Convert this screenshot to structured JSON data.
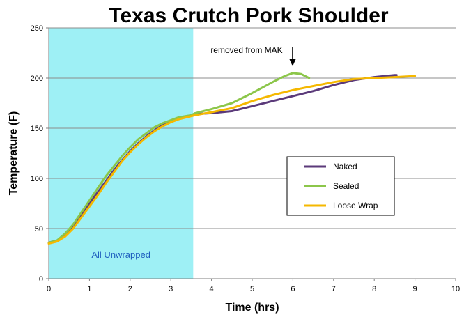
{
  "chart_data": {
    "type": "line",
    "title": "Texas Crutch Pork Shoulder",
    "xlabel": "Time (hrs)",
    "ylabel": "Temperature (F)",
    "xlim": [
      0,
      10
    ],
    "ylim": [
      0,
      250
    ],
    "xticks": [
      "0",
      "1",
      "2",
      "3",
      "4",
      "5",
      "6",
      "7",
      "8",
      "9",
      "10"
    ],
    "yticks": [
      "0",
      "50",
      "100",
      "150",
      "200",
      "250"
    ],
    "grid": "horizontal",
    "legend_position": "right-center",
    "shaded_region": {
      "label": "All Unwrapped",
      "x_start": 0,
      "x_end": 3.55,
      "color": "#9ef0f5"
    },
    "annotation": {
      "text": "removed from MAK",
      "x": 6.0,
      "y": 204
    },
    "series": [
      {
        "name": "Naked",
        "color": "#5b3a7a",
        "points": [
          [
            0,
            36
          ],
          [
            0.2,
            38
          ],
          [
            0.4,
            44
          ],
          [
            0.6,
            52
          ],
          [
            0.8,
            63
          ],
          [
            1.0,
            75
          ],
          [
            1.2,
            86
          ],
          [
            1.4,
            97
          ],
          [
            1.6,
            108
          ],
          [
            1.8,
            118
          ],
          [
            2.0,
            127
          ],
          [
            2.2,
            135
          ],
          [
            2.4,
            142
          ],
          [
            2.6,
            148
          ],
          [
            2.8,
            153
          ],
          [
            3.0,
            157
          ],
          [
            3.2,
            160
          ],
          [
            3.5,
            163
          ],
          [
            3.6,
            164
          ],
          [
            4.0,
            165
          ],
          [
            4.5,
            167
          ],
          [
            5.0,
            172
          ],
          [
            5.5,
            177
          ],
          [
            6.0,
            182
          ],
          [
            6.5,
            187
          ],
          [
            7.0,
            193
          ],
          [
            7.5,
            198
          ],
          [
            8.0,
            201
          ],
          [
            8.5,
            203
          ],
          [
            8.55,
            203
          ]
        ]
      },
      {
        "name": "Sealed",
        "color": "#8cc64a",
        "points": [
          [
            0,
            36
          ],
          [
            0.2,
            38
          ],
          [
            0.4,
            45
          ],
          [
            0.6,
            54
          ],
          [
            0.8,
            66
          ],
          [
            1.0,
            78
          ],
          [
            1.2,
            90
          ],
          [
            1.4,
            102
          ],
          [
            1.6,
            112
          ],
          [
            1.8,
            122
          ],
          [
            2.0,
            131
          ],
          [
            2.2,
            139
          ],
          [
            2.4,
            145
          ],
          [
            2.6,
            151
          ],
          [
            2.8,
            155
          ],
          [
            3.0,
            158
          ],
          [
            3.2,
            161
          ],
          [
            3.5,
            163
          ],
          [
            3.6,
            165
          ],
          [
            4.0,
            169
          ],
          [
            4.5,
            175
          ],
          [
            5.0,
            185
          ],
          [
            5.5,
            196
          ],
          [
            5.8,
            202
          ],
          [
            6.0,
            205
          ],
          [
            6.2,
            204
          ],
          [
            6.4,
            200
          ]
        ]
      },
      {
        "name": "Loose Wrap",
        "color": "#f5b800",
        "points": [
          [
            0,
            35
          ],
          [
            0.2,
            37
          ],
          [
            0.4,
            42
          ],
          [
            0.6,
            50
          ],
          [
            0.8,
            61
          ],
          [
            1.0,
            72
          ],
          [
            1.2,
            83
          ],
          [
            1.4,
            95
          ],
          [
            1.6,
            106
          ],
          [
            1.8,
            117
          ],
          [
            2.0,
            126
          ],
          [
            2.2,
            134
          ],
          [
            2.4,
            141
          ],
          [
            2.6,
            147
          ],
          [
            2.8,
            152
          ],
          [
            3.0,
            156
          ],
          [
            3.2,
            159
          ],
          [
            3.5,
            162
          ],
          [
            3.6,
            163
          ],
          [
            4.0,
            166
          ],
          [
            4.5,
            170
          ],
          [
            5.0,
            177
          ],
          [
            5.5,
            183
          ],
          [
            6.0,
            188
          ],
          [
            6.5,
            192
          ],
          [
            7.0,
            196
          ],
          [
            7.5,
            199
          ],
          [
            8.0,
            200
          ],
          [
            8.5,
            201
          ],
          [
            9.0,
            202
          ]
        ]
      }
    ]
  }
}
